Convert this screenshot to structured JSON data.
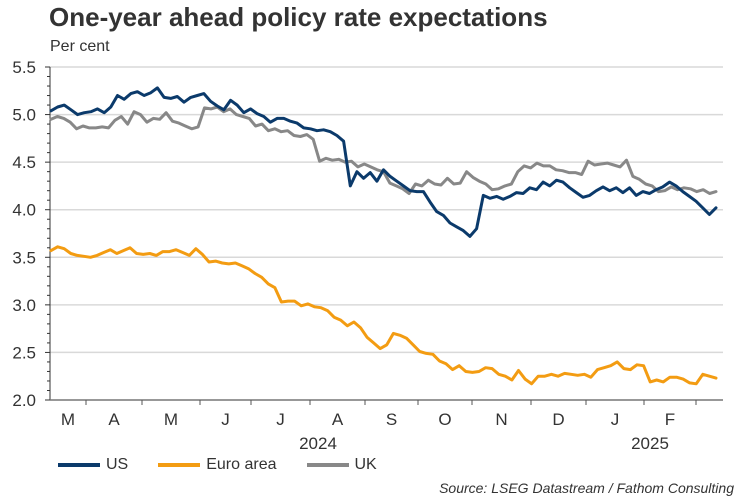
{
  "chart_data": {
    "type": "line",
    "title": "One-year ahead policy rate expectations",
    "ylabel": "Per cent",
    "xlabel": "",
    "ylim": [
      2.0,
      5.5
    ],
    "yticks": [
      "5.5",
      "5.0",
      "4.5",
      "4.0",
      "3.5",
      "3.0",
      "2.5",
      "2.0"
    ],
    "ytick_values": [
      5.5,
      5.0,
      4.5,
      4.0,
      3.5,
      3.0,
      2.5,
      2.0
    ],
    "grid": true,
    "x_months": [
      "M",
      "A",
      "M",
      "J",
      "J",
      "A",
      "S",
      "O",
      "N",
      "D",
      "J",
      "F"
    ],
    "x_years": [
      {
        "label": "2024",
        "after_month_index": 5
      },
      {
        "label": "2025",
        "after_month_index": 11
      }
    ],
    "x_range_months": [
      0,
      12
    ],
    "series": [
      {
        "name": "US",
        "color": "#0b3a6b",
        "values": [
          5.04,
          5.08,
          5.1,
          5.05,
          5.0,
          5.02,
          5.03,
          5.06,
          5.02,
          5.08,
          5.2,
          5.16,
          5.22,
          5.24,
          5.2,
          5.23,
          5.28,
          5.18,
          5.17,
          5.19,
          5.13,
          5.18,
          5.2,
          5.22,
          5.14,
          5.09,
          5.05,
          5.15,
          5.1,
          5.02,
          5.06,
          5.01,
          4.98,
          4.92,
          4.96,
          4.96,
          4.93,
          4.91,
          4.86,
          4.85,
          4.83,
          4.84,
          4.82,
          4.78,
          4.72,
          4.25,
          4.4,
          4.33,
          4.39,
          4.3,
          4.42,
          4.35,
          4.3,
          4.25,
          4.2,
          4.19,
          4.19,
          4.08,
          3.98,
          3.94,
          3.86,
          3.82,
          3.78,
          3.72,
          3.8,
          4.15,
          4.12,
          4.14,
          4.11,
          4.14,
          4.18,
          4.17,
          4.23,
          4.21,
          4.29,
          4.25,
          4.31,
          4.29,
          4.23,
          4.18,
          4.13,
          4.15,
          4.2,
          4.24,
          4.2,
          4.23,
          4.18,
          4.23,
          4.15,
          4.19,
          4.17,
          4.21,
          4.24,
          4.29,
          4.25,
          4.19,
          4.14,
          4.09,
          4.02,
          3.95,
          4.02
        ]
      },
      {
        "name": "Euro area",
        "color": "#f39c12",
        "values": [
          3.57,
          3.61,
          3.59,
          3.54,
          3.52,
          3.51,
          3.5,
          3.52,
          3.55,
          3.58,
          3.54,
          3.57,
          3.6,
          3.54,
          3.53,
          3.54,
          3.52,
          3.56,
          3.56,
          3.58,
          3.55,
          3.52,
          3.59,
          3.53,
          3.45,
          3.46,
          3.44,
          3.43,
          3.44,
          3.41,
          3.38,
          3.33,
          3.29,
          3.22,
          3.18,
          3.03,
          3.04,
          3.04,
          2.99,
          3.01,
          2.98,
          2.97,
          2.94,
          2.87,
          2.84,
          2.78,
          2.82,
          2.76,
          2.66,
          2.6,
          2.54,
          2.58,
          2.7,
          2.68,
          2.65,
          2.58,
          2.51,
          2.49,
          2.48,
          2.41,
          2.38,
          2.32,
          2.36,
          2.3,
          2.29,
          2.3,
          2.34,
          2.33,
          2.27,
          2.25,
          2.21,
          2.31,
          2.22,
          2.17,
          2.25,
          2.25,
          2.27,
          2.25,
          2.28,
          2.27,
          2.26,
          2.27,
          2.24,
          2.32,
          2.34,
          2.36,
          2.4,
          2.33,
          2.32,
          2.37,
          2.36,
          2.19,
          2.21,
          2.19,
          2.24,
          2.24,
          2.22,
          2.18,
          2.17,
          2.27,
          2.25,
          2.23
        ]
      },
      {
        "name": "UK",
        "color": "#888888",
        "values": [
          4.95,
          4.98,
          4.96,
          4.92,
          4.85,
          4.88,
          4.86,
          4.86,
          4.87,
          4.86,
          4.94,
          4.98,
          4.9,
          5.03,
          5.0,
          4.92,
          4.96,
          4.95,
          5.02,
          4.93,
          4.91,
          4.88,
          4.85,
          4.87,
          5.07,
          5.06,
          5.08,
          5.03,
          5.06,
          5.0,
          4.98,
          4.96,
          4.88,
          4.9,
          4.83,
          4.85,
          4.82,
          4.83,
          4.78,
          4.77,
          4.79,
          4.74,
          4.51,
          4.54,
          4.52,
          4.53,
          4.5,
          4.51,
          4.45,
          4.48,
          4.45,
          4.42,
          4.4,
          4.28,
          4.25,
          4.22,
          4.17,
          4.27,
          4.25,
          4.31,
          4.27,
          4.26,
          4.33,
          4.27,
          4.28,
          4.4,
          4.34,
          4.3,
          4.27,
          4.21,
          4.22,
          4.25,
          4.27,
          4.4,
          4.46,
          4.44,
          4.49,
          4.46,
          4.46,
          4.42,
          4.41,
          4.39,
          4.39,
          4.37,
          4.51,
          4.47,
          4.48,
          4.49,
          4.47,
          4.45,
          4.52,
          4.35,
          4.32,
          4.27,
          4.25,
          4.19,
          4.2,
          4.24,
          4.21,
          4.23,
          4.22,
          4.19,
          4.21,
          4.17,
          4.19
        ]
      }
    ]
  },
  "legend": {
    "items": [
      {
        "label": "US",
        "color": "#0b3a6b"
      },
      {
        "label": "Euro area",
        "color": "#f39c12"
      },
      {
        "label": "UK",
        "color": "#888888"
      }
    ]
  },
  "source": "Source: LSEG Datastream / Fathom Consulting"
}
